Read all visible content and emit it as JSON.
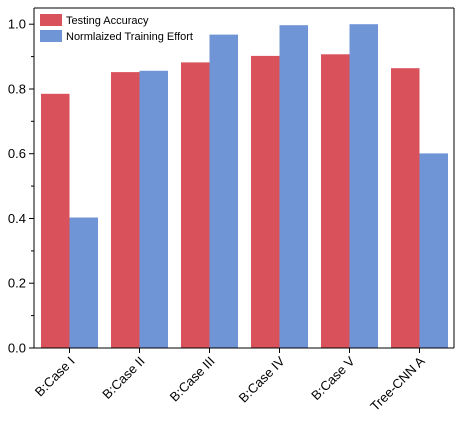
{
  "chart_data": {
    "type": "bar",
    "title": "",
    "xlabel": "",
    "ylabel": "",
    "ylim": [
      0,
      1.05
    ],
    "yticks": [
      "0.0",
      "0.2",
      "0.4",
      "0.6",
      "0.8",
      "1.0"
    ],
    "categories": [
      "B:Case I",
      "B:Case II",
      "B:Case III",
      "B:Case IV",
      "B:Case V",
      "Tree-CNN A"
    ],
    "series": [
      {
        "name": "Testing Accuracy",
        "color": "#d9515b",
        "values": [
          0.785,
          0.852,
          0.882,
          0.902,
          0.907,
          0.864
        ]
      },
      {
        "name": "Normlaized Training Effort",
        "color": "#6f95d6",
        "values": [
          0.403,
          0.856,
          0.968,
          0.997,
          1.0,
          0.601
        ]
      }
    ],
    "legend_position": "top-left",
    "grid": false
  }
}
